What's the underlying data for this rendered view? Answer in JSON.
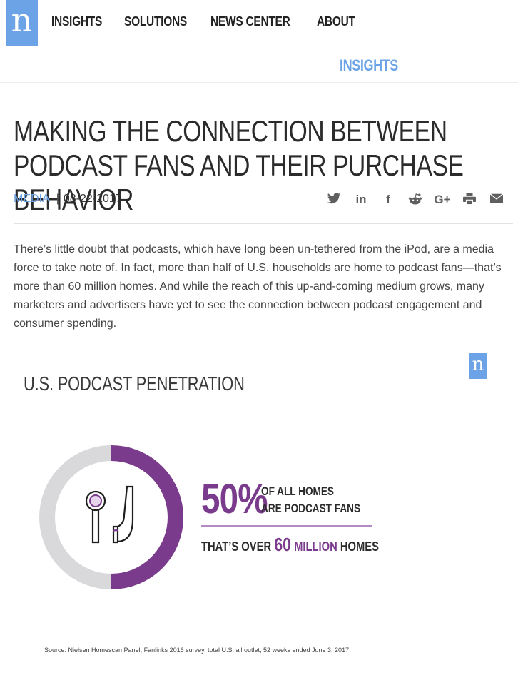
{
  "header": {
    "logo_letter": "n",
    "nav": [
      "INSIGHTS",
      "SOLUTIONS",
      "NEWS CENTER",
      "ABOUT"
    ]
  },
  "subbar": {
    "section": "INSIGHTS"
  },
  "article": {
    "title": "MAKING THE CONNECTION BETWEEN PODCAST FANS AND THEIR PURCHASE BEHAVIOR",
    "category": "MEDIA",
    "date": "08-22-2017",
    "body": "There’s little doubt that podcasts, which have long been un-tethered from the iPod, are a media force to take note of. In fact, more than half of U.S. households are home to podcast fans—that’s more than 60 million homes. And while the reach of this up-and-coming medium grows, many marketers and advertisers have yet to see the connection between podcast engagement and consumer spending."
  },
  "share": {
    "icons": [
      "twitter-icon",
      "linkedin-icon",
      "facebook-icon",
      "reddit-icon",
      "google-plus-icon",
      "print-icon",
      "email-icon"
    ]
  },
  "infographic": {
    "logo_letter": "n",
    "title": "U.S. PODCAST PENETRATION",
    "pct": "50%",
    "line1": "OF ALL HOMES",
    "line2": "ARE PODCAST FANS",
    "sub_prefix": "THAT’S OVER",
    "sub_number": "60",
    "sub_million": "MILLION",
    "sub_suffix": "HOMES",
    "source": "Source: Nielsen Homescan Panel, Fanlinks 2016 survey, total U.S. all outlet, 52 weeks ended June 3, 2017",
    "donut_fraction": 0.5,
    "colors": {
      "fill": "#7a3b8c",
      "track": "#d9d9dc"
    }
  }
}
